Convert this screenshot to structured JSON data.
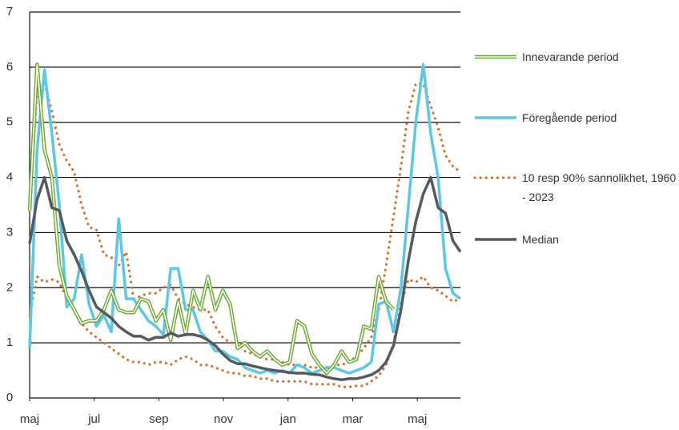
{
  "chart_data": {
    "type": "line",
    "x": [
      0,
      1,
      2,
      3,
      4,
      5,
      6,
      7,
      8,
      9,
      10,
      11,
      12,
      13,
      14,
      15,
      16,
      17,
      18,
      19,
      20,
      21,
      22,
      23,
      24,
      25,
      26,
      27,
      28,
      29,
      30,
      31,
      32,
      33,
      34,
      35,
      36,
      37,
      38,
      39,
      40,
      41,
      42,
      43,
      44,
      45,
      46,
      47,
      48,
      49,
      50,
      51,
      52,
      53,
      54,
      55,
      56,
      57,
      58
    ],
    "xlim": [
      0,
      58
    ],
    "xticks": [
      {
        "value": 0,
        "label": "maj"
      },
      {
        "value": 8.7,
        "label": "jul"
      },
      {
        "value": 17.4,
        "label": "sep"
      },
      {
        "value": 26.1,
        "label": "nov"
      },
      {
        "value": 34.8,
        "label": "jan"
      },
      {
        "value": 43.5,
        "label": "mar"
      },
      {
        "value": 52.2,
        "label": "maj"
      }
    ],
    "ylim": [
      0,
      7
    ],
    "yticks": [
      0,
      1,
      2,
      3,
      4,
      5,
      6,
      7
    ],
    "grid": true,
    "series": [
      {
        "name": "Innevarande period",
        "color": "#6aab2e",
        "style": "double",
        "values": [
          3.4,
          6.05,
          4.5,
          4.0,
          2.4,
          1.85,
          1.6,
          1.35,
          1.4,
          1.4,
          1.6,
          1.95,
          1.6,
          1.55,
          1.55,
          1.8,
          1.75,
          1.4,
          1.6,
          1.05,
          1.75,
          1.15,
          1.95,
          1.6,
          2.2,
          1.6,
          1.95,
          1.7,
          0.9,
          1.0,
          0.85,
          0.75,
          0.85,
          0.7,
          0.6,
          0.65,
          1.4,
          1.3,
          0.8,
          0.6,
          0.45,
          0.6,
          0.85,
          0.65,
          0.7,
          1.3,
          1.25,
          2.2,
          1.75,
          1.6,
          null,
          null,
          null,
          null,
          null,
          null,
          null,
          null,
          null
        ]
      },
      {
        "name": "Föregående period",
        "color": "#5bc8ea",
        "style": "solid",
        "values": [
          0.9,
          4.5,
          5.95,
          4.8,
          3.5,
          1.65,
          1.8,
          2.6,
          1.7,
          1.3,
          1.5,
          1.2,
          3.25,
          1.8,
          1.8,
          1.6,
          1.4,
          1.3,
          1.15,
          2.35,
          2.35,
          1.6,
          1.6,
          1.2,
          1.05,
          0.85,
          0.85,
          0.75,
          0.7,
          0.55,
          0.5,
          0.45,
          0.5,
          0.45,
          0.5,
          0.45,
          0.6,
          0.55,
          0.45,
          0.5,
          0.55,
          0.55,
          0.5,
          0.45,
          0.5,
          0.55,
          0.65,
          1.7,
          1.75,
          1.2,
          2.0,
          3.5,
          5.0,
          6.05,
          4.8,
          4.0,
          2.35,
          1.9,
          1.8
        ]
      },
      {
        "name": "10 resp 90% sannolikhet, 1960 - 2023",
        "color": "#d9702a",
        "style": "dotted",
        "values": [
          3.4,
          5.6,
          5.7,
          5.2,
          4.6,
          4.3,
          4.1,
          3.5,
          3.1,
          3.05,
          2.6,
          2.55,
          2.4,
          2.65,
          1.8,
          1.85,
          1.9,
          1.9,
          2.0,
          2.05,
          1.8,
          1.7,
          1.65,
          1.6,
          1.6,
          1.3,
          1.1,
          1.0,
          1.0,
          0.85,
          0.8,
          0.75,
          0.7,
          0.7,
          0.65,
          0.6,
          0.6,
          0.6,
          0.55,
          0.55,
          0.55,
          0.6,
          0.6,
          0.65,
          0.75,
          0.9,
          1.1,
          1.6,
          2.4,
          3.3,
          4.2,
          5.2,
          5.7,
          5.7,
          5.3,
          4.9,
          4.4,
          4.2,
          4.1
        ]
      },
      {
        "color": "#d9702a",
        "style": "dotted",
        "values": [
          1.5,
          2.2,
          2.1,
          2.15,
          2.1,
          1.8,
          1.6,
          1.35,
          1.2,
          1.1,
          1.0,
          0.9,
          0.8,
          0.7,
          0.65,
          0.65,
          0.6,
          0.65,
          0.65,
          0.6,
          0.7,
          0.75,
          0.7,
          0.6,
          0.6,
          0.55,
          0.5,
          0.45,
          0.45,
          0.4,
          0.4,
          0.35,
          0.35,
          0.3,
          0.3,
          0.3,
          0.3,
          0.3,
          0.25,
          0.25,
          0.25,
          0.25,
          0.2,
          0.2,
          0.22,
          0.22,
          0.3,
          0.4,
          0.6,
          1.0,
          1.7,
          2.15,
          2.1,
          2.2,
          2.0,
          1.95,
          1.85,
          1.75,
          1.8
        ]
      },
      {
        "name": "Median",
        "color": "#555a5e",
        "style": "solid",
        "values": [
          2.8,
          3.6,
          4.0,
          3.45,
          3.4,
          2.85,
          2.6,
          2.3,
          1.95,
          1.65,
          1.55,
          1.45,
          1.3,
          1.2,
          1.12,
          1.12,
          1.05,
          1.1,
          1.1,
          1.18,
          1.12,
          1.15,
          1.15,
          1.12,
          1.05,
          0.95,
          0.8,
          0.68,
          0.62,
          0.62,
          0.58,
          0.55,
          0.52,
          0.5,
          0.48,
          0.46,
          0.45,
          0.45,
          0.43,
          0.42,
          0.38,
          0.35,
          0.33,
          0.35,
          0.35,
          0.38,
          0.42,
          0.5,
          0.65,
          0.95,
          1.6,
          2.5,
          3.2,
          3.7,
          4.0,
          3.45,
          3.35,
          2.85,
          2.65
        ]
      }
    ]
  }
}
